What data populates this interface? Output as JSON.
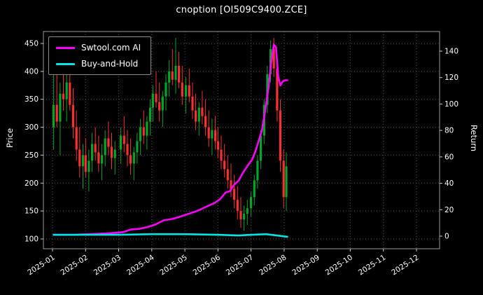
{
  "chart_data": {
    "type": "candlestick+line",
    "title": "cnoption [OI509C9400.ZCE]",
    "ylabel_left": "Price",
    "ylabel_right": "Return",
    "legend_position": "upper-left",
    "grid": "dotted",
    "background": "#000000",
    "x_ticks": [
      "2025-01",
      "2025-02",
      "2025-03",
      "2025-04",
      "2025-05",
      "2025-06",
      "2025-07",
      "2025-08",
      "2025-09",
      "2025-10",
      "2025-11",
      "2025-12"
    ],
    "price_ticks": [
      100,
      150,
      200,
      250,
      300,
      350,
      400,
      450
    ],
    "price_range": [
      82,
      471
    ],
    "return_ticks": [
      0,
      20,
      40,
      60,
      80,
      100,
      120,
      140
    ],
    "return_range": [
      -4,
      150
    ],
    "colors": {
      "up": "#00a629",
      "down": "#f73030",
      "grid": "#555555",
      "text": "#ffffff",
      "frame": "#999999",
      "ai_line": "#ff00ff",
      "bh_line": "#00e5e5"
    },
    "candles": [
      [
        "2025-01-02",
        300,
        420,
        260,
        340
      ],
      [
        "2025-01-05",
        340,
        400,
        300,
        310
      ],
      [
        "2025-01-08",
        310,
        380,
        250,
        360
      ],
      [
        "2025-01-11",
        360,
        410,
        330,
        350
      ],
      [
        "2025-01-14",
        350,
        400,
        310,
        380
      ],
      [
        "2025-01-17",
        380,
        400,
        330,
        340
      ],
      [
        "2025-01-20",
        340,
        370,
        280,
        300
      ],
      [
        "2025-01-23",
        300,
        330,
        240,
        260
      ],
      [
        "2025-01-26",
        260,
        300,
        210,
        230
      ],
      [
        "2025-01-29",
        230,
        270,
        190,
        250
      ],
      [
        "2025-02-01",
        250,
        280,
        210,
        220
      ],
      [
        "2025-02-04",
        220,
        260,
        185,
        240
      ],
      [
        "2025-02-07",
        240,
        290,
        220,
        270
      ],
      [
        "2025-02-10",
        270,
        300,
        240,
        255
      ],
      [
        "2025-02-13",
        255,
        285,
        220,
        235
      ],
      [
        "2025-02-16",
        235,
        270,
        205,
        250
      ],
      [
        "2025-02-19",
        250,
        295,
        230,
        280
      ],
      [
        "2025-02-22",
        280,
        310,
        250,
        265
      ],
      [
        "2025-02-25",
        265,
        290,
        225,
        245
      ],
      [
        "2025-02-28",
        245,
        275,
        215,
        260
      ],
      [
        "2025-03-03",
        260,
        300,
        235,
        285
      ],
      [
        "2025-03-06",
        285,
        320,
        255,
        270
      ],
      [
        "2025-03-09",
        270,
        295,
        230,
        250
      ],
      [
        "2025-03-12",
        250,
        280,
        215,
        235
      ],
      [
        "2025-03-15",
        235,
        265,
        205,
        255
      ],
      [
        "2025-03-18",
        255,
        290,
        235,
        275
      ],
      [
        "2025-03-21",
        275,
        315,
        250,
        300
      ],
      [
        "2025-03-24",
        300,
        330,
        270,
        285
      ],
      [
        "2025-03-27",
        285,
        320,
        260,
        310
      ],
      [
        "2025-03-30",
        310,
        350,
        285,
        335
      ],
      [
        "2025-04-02",
        335,
        375,
        310,
        360
      ],
      [
        "2025-04-05",
        360,
        400,
        335,
        345
      ],
      [
        "2025-04-08",
        345,
        380,
        310,
        330
      ],
      [
        "2025-04-11",
        330,
        365,
        300,
        355
      ],
      [
        "2025-04-14",
        355,
        395,
        330,
        380
      ],
      [
        "2025-04-17",
        380,
        420,
        355,
        400
      ],
      [
        "2025-04-20",
        400,
        440,
        375,
        385
      ],
      [
        "2025-04-23",
        385,
        460,
        360,
        410
      ],
      [
        "2025-04-26",
        410,
        435,
        370,
        380
      ],
      [
        "2025-04-29",
        380,
        410,
        340,
        355
      ],
      [
        "2025-05-02",
        355,
        390,
        325,
        375
      ],
      [
        "2025-05-05",
        375,
        405,
        345,
        355
      ],
      [
        "2025-05-08",
        355,
        380,
        315,
        330
      ],
      [
        "2025-05-11",
        330,
        360,
        295,
        310
      ],
      [
        "2025-05-14",
        310,
        345,
        285,
        335
      ],
      [
        "2025-05-17",
        335,
        365,
        305,
        320
      ],
      [
        "2025-05-20",
        320,
        350,
        285,
        300
      ],
      [
        "2025-05-23",
        300,
        330,
        265,
        280
      ],
      [
        "2025-05-26",
        280,
        315,
        250,
        295
      ],
      [
        "2025-05-29",
        295,
        320,
        260,
        275
      ],
      [
        "2025-06-01",
        275,
        300,
        245,
        260
      ],
      [
        "2025-06-04",
        260,
        285,
        225,
        240
      ],
      [
        "2025-06-07",
        240,
        270,
        210,
        225
      ],
      [
        "2025-06-10",
        225,
        250,
        190,
        205
      ],
      [
        "2025-06-13",
        205,
        235,
        175,
        190
      ],
      [
        "2025-06-16",
        190,
        215,
        155,
        170
      ],
      [
        "2025-06-19",
        170,
        195,
        135,
        150
      ],
      [
        "2025-06-22",
        150,
        175,
        120,
        135
      ],
      [
        "2025-06-25",
        135,
        160,
        115,
        145
      ],
      [
        "2025-06-28",
        145,
        170,
        125,
        155
      ],
      [
        "2025-07-01",
        155,
        185,
        140,
        175
      ],
      [
        "2025-07-04",
        175,
        215,
        160,
        205
      ],
      [
        "2025-07-07",
        205,
        250,
        190,
        240
      ],
      [
        "2025-07-10",
        240,
        295,
        225,
        285
      ],
      [
        "2025-07-13",
        285,
        350,
        270,
        340
      ],
      [
        "2025-07-16",
        340,
        410,
        325,
        395
      ],
      [
        "2025-07-19",
        395,
        455,
        380,
        440
      ],
      [
        "2025-07-22",
        440,
        460,
        390,
        405
      ],
      [
        "2025-07-25",
        405,
        425,
        310,
        330
      ],
      [
        "2025-07-28",
        330,
        350,
        220,
        240
      ],
      [
        "2025-07-31",
        240,
        260,
        155,
        175
      ],
      [
        "2025-08-03",
        175,
        255,
        150,
        230
      ]
    ],
    "series": [
      {
        "name": "Swtool.com AI",
        "color": "#ff00ff",
        "axis": "return",
        "points": [
          [
            "2025-01-02",
            1
          ],
          [
            "2025-01-20",
            1
          ],
          [
            "2025-02-05",
            1.5
          ],
          [
            "2025-02-20",
            2
          ],
          [
            "2025-03-05",
            3
          ],
          [
            "2025-03-12",
            5
          ],
          [
            "2025-03-20",
            5.5
          ],
          [
            "2025-03-28",
            7
          ],
          [
            "2025-04-05",
            9
          ],
          [
            "2025-04-12",
            12
          ],
          [
            "2025-04-20",
            13
          ],
          [
            "2025-04-28",
            15
          ],
          [
            "2025-05-05",
            17
          ],
          [
            "2025-05-12",
            19
          ],
          [
            "2025-05-20",
            22
          ],
          [
            "2025-05-28",
            25
          ],
          [
            "2025-06-03",
            28
          ],
          [
            "2025-06-08",
            33
          ],
          [
            "2025-06-12",
            34
          ],
          [
            "2025-06-16",
            39
          ],
          [
            "2025-06-20",
            42
          ],
          [
            "2025-06-24",
            48
          ],
          [
            "2025-06-28",
            53
          ],
          [
            "2025-07-02",
            58
          ],
          [
            "2025-07-05",
            64
          ],
          [
            "2025-07-08",
            72
          ],
          [
            "2025-07-11",
            80
          ],
          [
            "2025-07-14",
            95
          ],
          [
            "2025-07-17",
            112
          ],
          [
            "2025-07-19",
            128
          ],
          [
            "2025-07-21",
            140
          ],
          [
            "2025-07-22",
            145
          ],
          [
            "2025-07-24",
            143
          ],
          [
            "2025-07-26",
            121
          ],
          [
            "2025-07-28",
            114
          ],
          [
            "2025-07-30",
            117
          ],
          [
            "2025-08-02",
            118
          ],
          [
            "2025-08-04",
            118
          ]
        ]
      },
      {
        "name": "Buy-and-Hold",
        "color": "#00e5e5",
        "axis": "return",
        "points": [
          [
            "2025-01-02",
            1
          ],
          [
            "2025-02-01",
            1
          ],
          [
            "2025-03-01",
            1
          ],
          [
            "2025-04-01",
            1.5
          ],
          [
            "2025-05-01",
            1.5
          ],
          [
            "2025-06-01",
            1
          ],
          [
            "2025-06-20",
            0.5
          ],
          [
            "2025-07-01",
            1
          ],
          [
            "2025-07-15",
            1.5
          ],
          [
            "2025-07-25",
            0.5
          ],
          [
            "2025-08-04",
            -0.5
          ]
        ]
      }
    ]
  }
}
